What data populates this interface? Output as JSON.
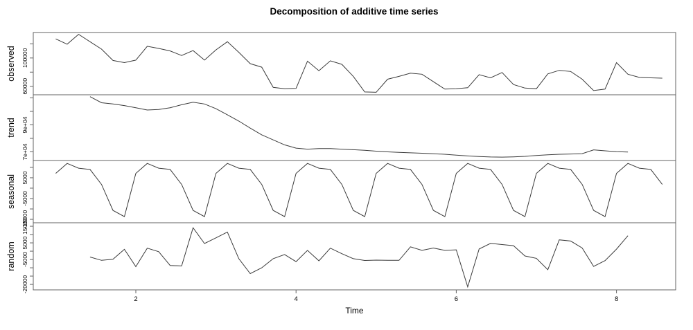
{
  "title": "Decomposition of additive time series",
  "x_axis": {
    "label": "Time",
    "ticks": [
      2,
      4,
      6,
      8
    ]
  },
  "colors": {
    "background": "#ffffff",
    "series_line": "#3a3a3a",
    "box_line": "#636363",
    "text": "#000000"
  },
  "chart_data": {
    "type": "line",
    "title": "Decomposition of additive time series",
    "xlabel": "Time",
    "x_start": 1,
    "x_step": 0.142857,
    "frequency": 7,
    "x_ticks": [
      2,
      4,
      6,
      8
    ],
    "x_range": [
      0.72,
      8.74
    ],
    "legend": "none",
    "grid": false,
    "seasonal_pattern": [
      7100,
      11900,
      9600,
      9000,
      1800,
      -10700,
      -13700
    ],
    "panels": [
      {
        "name": "observed",
        "t0": 1.0,
        "ylim": [
          48000,
          136000
        ],
        "ticks": [
          {
            "v": 120000,
            "label": ""
          },
          {
            "v": 100000,
            "label": "100000"
          },
          {
            "v": 80000,
            "label": ""
          },
          {
            "v": 60000,
            "label": "60000"
          }
        ],
        "values": [
          127000,
          119500,
          133500,
          123000,
          112500,
          96500,
          93500,
          97000,
          116500,
          113500,
          110000,
          103500,
          110500,
          97000,
          111500,
          123000,
          108000,
          92000,
          87000,
          58500,
          56500,
          57000,
          95500,
          82000,
          96000,
          91000,
          74000,
          52000,
          51500,
          70000,
          74000,
          78500,
          77000,
          66500,
          56000,
          56500,
          58000,
          76500,
          72000,
          79500,
          62500,
          57500,
          56500,
          77500,
          82500,
          81000,
          70000,
          54000,
          56000,
          93500,
          77000,
          72500,
          72000,
          71500
        ]
      },
      {
        "name": "trend",
        "t0": 1.428571,
        "ylim": [
          63600,
          112300
        ],
        "ticks": [
          {
            "v": 110000,
            "label": ""
          },
          {
            "v": 100000,
            "label": ""
          },
          {
            "v": 90000,
            "label": "9e+04"
          },
          {
            "v": 80000,
            "label": ""
          },
          {
            "v": 70000,
            "label": "7e+04"
          }
        ],
        "values": [
          110900,
          106400,
          105500,
          104300,
          102700,
          101000,
          101400,
          102700,
          104900,
          106800,
          105500,
          102000,
          97500,
          92800,
          87600,
          82600,
          78900,
          75200,
          72800,
          72000,
          72400,
          72400,
          72000,
          71600,
          71200,
          70500,
          70000,
          69600,
          69300,
          69000,
          68600,
          68200,
          67600,
          67000,
          66500,
          66200,
          66100,
          66300,
          66700,
          67300,
          67800,
          68200,
          68400,
          68700,
          71500,
          70800,
          70100,
          69900
        ]
      },
      {
        "name": "seasonal",
        "t0": 1.0,
        "ylim": [
          -16650,
          13300
        ],
        "ticks": [
          {
            "v": 10000,
            "label": ""
          },
          {
            "v": 5000,
            "label": "5000"
          },
          {
            "v": 0,
            "label": ""
          },
          {
            "v": -5000,
            "label": "-5000"
          },
          {
            "v": -10000,
            "label": ""
          },
          {
            "v": -15000,
            "label": "-15000"
          }
        ],
        "values": [
          7100,
          11900,
          9600,
          9000,
          1800,
          -10700,
          -13700,
          7100,
          11900,
          9600,
          9000,
          1800,
          -10700,
          -13700,
          7100,
          11900,
          9600,
          9000,
          1800,
          -10700,
          -13700,
          7100,
          11900,
          9600,
          9000,
          1800,
          -10700,
          -13700,
          7100,
          11900,
          9600,
          9000,
          1800,
          -10700,
          -13700,
          7100,
          11900,
          9600,
          9000,
          1800,
          -10700,
          -13700,
          7100,
          11900,
          9600,
          9000,
          1800,
          -10700,
          -13700,
          7100,
          11900,
          9600,
          9000,
          1800
        ]
      },
      {
        "name": "random",
        "t0": 1.428571,
        "ylim": [
          -23300,
          17100
        ],
        "ticks": [
          {
            "v": 15000,
            "label": "15000"
          },
          {
            "v": 10000,
            "label": ""
          },
          {
            "v": 5000,
            "label": "5000"
          },
          {
            "v": 0,
            "label": ""
          },
          {
            "v": -5000,
            "label": "-5000"
          },
          {
            "v": -10000,
            "label": ""
          },
          {
            "v": -15000,
            "label": ""
          },
          {
            "v": -20000,
            "label": "-20000"
          }
        ],
        "values": [
          -3500,
          -5500,
          -4900,
          1100,
          -9300,
          1800,
          -300,
          -8600,
          -8900,
          14100,
          4600,
          8000,
          11500,
          -4500,
          -13500,
          -10000,
          -4500,
          -2000,
          -6300,
          500,
          -5800,
          1800,
          -1500,
          -4500,
          -5600,
          -5400,
          -5500,
          -5500,
          2600,
          500,
          1900,
          500,
          800,
          -21500,
          1300,
          4700,
          4000,
          3300,
          -2900,
          -4300,
          -11200,
          6800,
          6100,
          1900,
          -9200,
          -5700,
          1250,
          9300
        ]
      }
    ]
  }
}
